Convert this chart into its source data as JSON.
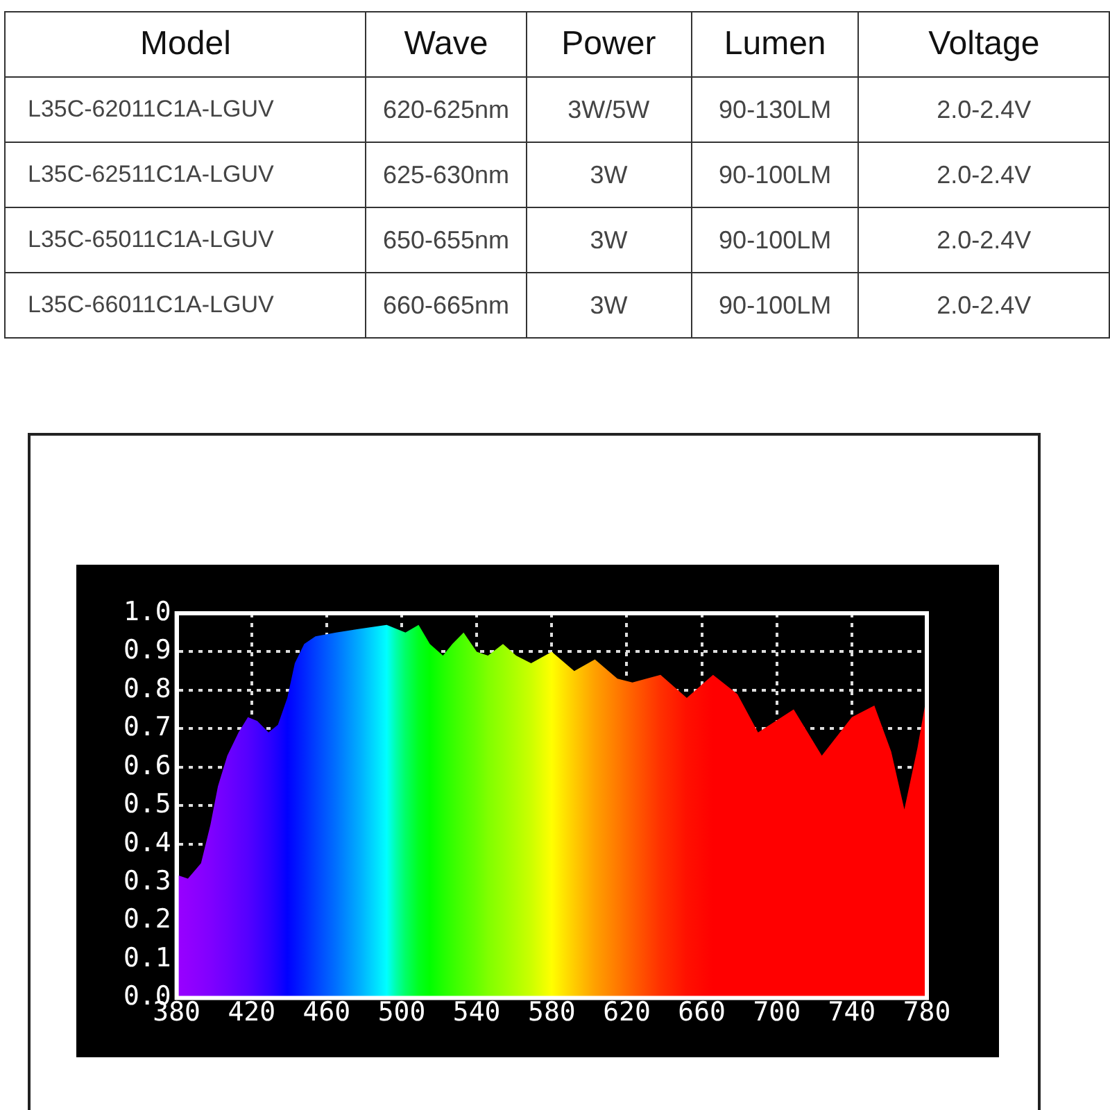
{
  "chart_data": [
    {
      "type": "other",
      "annotations": [
        "Model",
        "Wave",
        "Power",
        "Lumen",
        "Voltage",
        "L35C-62011C1A-LGUV",
        "620-625nm",
        "3W/5W",
        "90-130LM",
        "2.0-2.4V",
        "L35C-62511C1A-LGUV",
        "625-630nm",
        "3W",
        "90-100LM",
        "2.0-2.4V",
        "L35C-65011C1A-LGUV",
        "650-655nm",
        "3W",
        "90-100LM",
        "2.0-2.4V",
        "L35C-66011C1A-LGUV",
        "660-665nm",
        "3W",
        "90-100LM",
        "2.0-2.4V"
      ]
    },
    {
      "type": "area",
      "x": [
        380,
        386,
        393,
        398,
        402,
        407,
        413,
        418,
        423,
        429,
        434,
        439,
        443,
        448,
        454,
        465,
        478,
        492,
        497,
        502,
        509,
        515,
        522,
        527,
        533,
        540,
        546,
        554,
        561,
        569,
        580,
        592,
        603,
        615,
        623,
        638,
        652,
        666,
        679,
        690,
        709,
        724,
        740,
        752,
        761,
        768,
        775,
        779,
        780
      ],
      "values": [
        0.32,
        0.31,
        0.35,
        0.45,
        0.55,
        0.63,
        0.69,
        0.73,
        0.72,
        0.69,
        0.71,
        0.78,
        0.87,
        0.92,
        0.94,
        0.95,
        0.96,
        0.97,
        0.96,
        0.95,
        0.97,
        0.92,
        0.89,
        0.92,
        0.95,
        0.9,
        0.89,
        0.92,
        0.89,
        0.87,
        0.9,
        0.85,
        0.88,
        0.83,
        0.82,
        0.84,
        0.78,
        0.84,
        0.79,
        0.69,
        0.75,
        0.63,
        0.73,
        0.76,
        0.64,
        0.49,
        0.65,
        0.76,
        0.76
      ],
      "colors": [
        "#9900ff",
        "#9200ff",
        "#8800ff",
        "#8000ff",
        "#7800ff",
        "#6e00ff",
        "#6000ff",
        "#5500ff",
        "#4400ff",
        "#3000ff",
        "#1a00ff",
        "#0000ff",
        "#0010ff",
        "#0025ff",
        "#0040ff",
        "#0070ff",
        "#00b0ff",
        "#00ffff",
        "#00ffaa",
        "#00ff66",
        "#00ff20",
        "#00ff00",
        "#20ff00",
        "#35ff00",
        "#4cff00",
        "#66ff00",
        "#80ff00",
        "#99ff00",
        "#b0ff00",
        "#ccff00",
        "#ffff00",
        "#ffcc00",
        "#ffa000",
        "#ff7a00",
        "#ff6000",
        "#ff3000",
        "#ff1000",
        "#ff0000",
        "#ff0000",
        "#ff0000",
        "#ff0000",
        "#ff0000",
        "#ff0000",
        "#ff0000",
        "#ff0000",
        "#ff0000",
        "#ff0000",
        "#ff0000",
        "#ff0000"
      ],
      "xlim": [
        380,
        780
      ],
      "xticks": [
        380,
        420,
        460,
        500,
        540,
        580,
        620,
        660,
        700,
        740,
        780
      ],
      "ylim": [
        0,
        1
      ],
      "yticks": [
        {
          "value": 0,
          "label": "0.0"
        },
        0.1,
        0.2,
        0.3,
        0.4,
        0.5,
        0.6,
        0.7,
        0.8,
        0.9,
        {
          "value": 1,
          "label": "1.0"
        }
      ],
      "grid": true,
      "legend": false,
      "marker": "none"
    }
  ]
}
